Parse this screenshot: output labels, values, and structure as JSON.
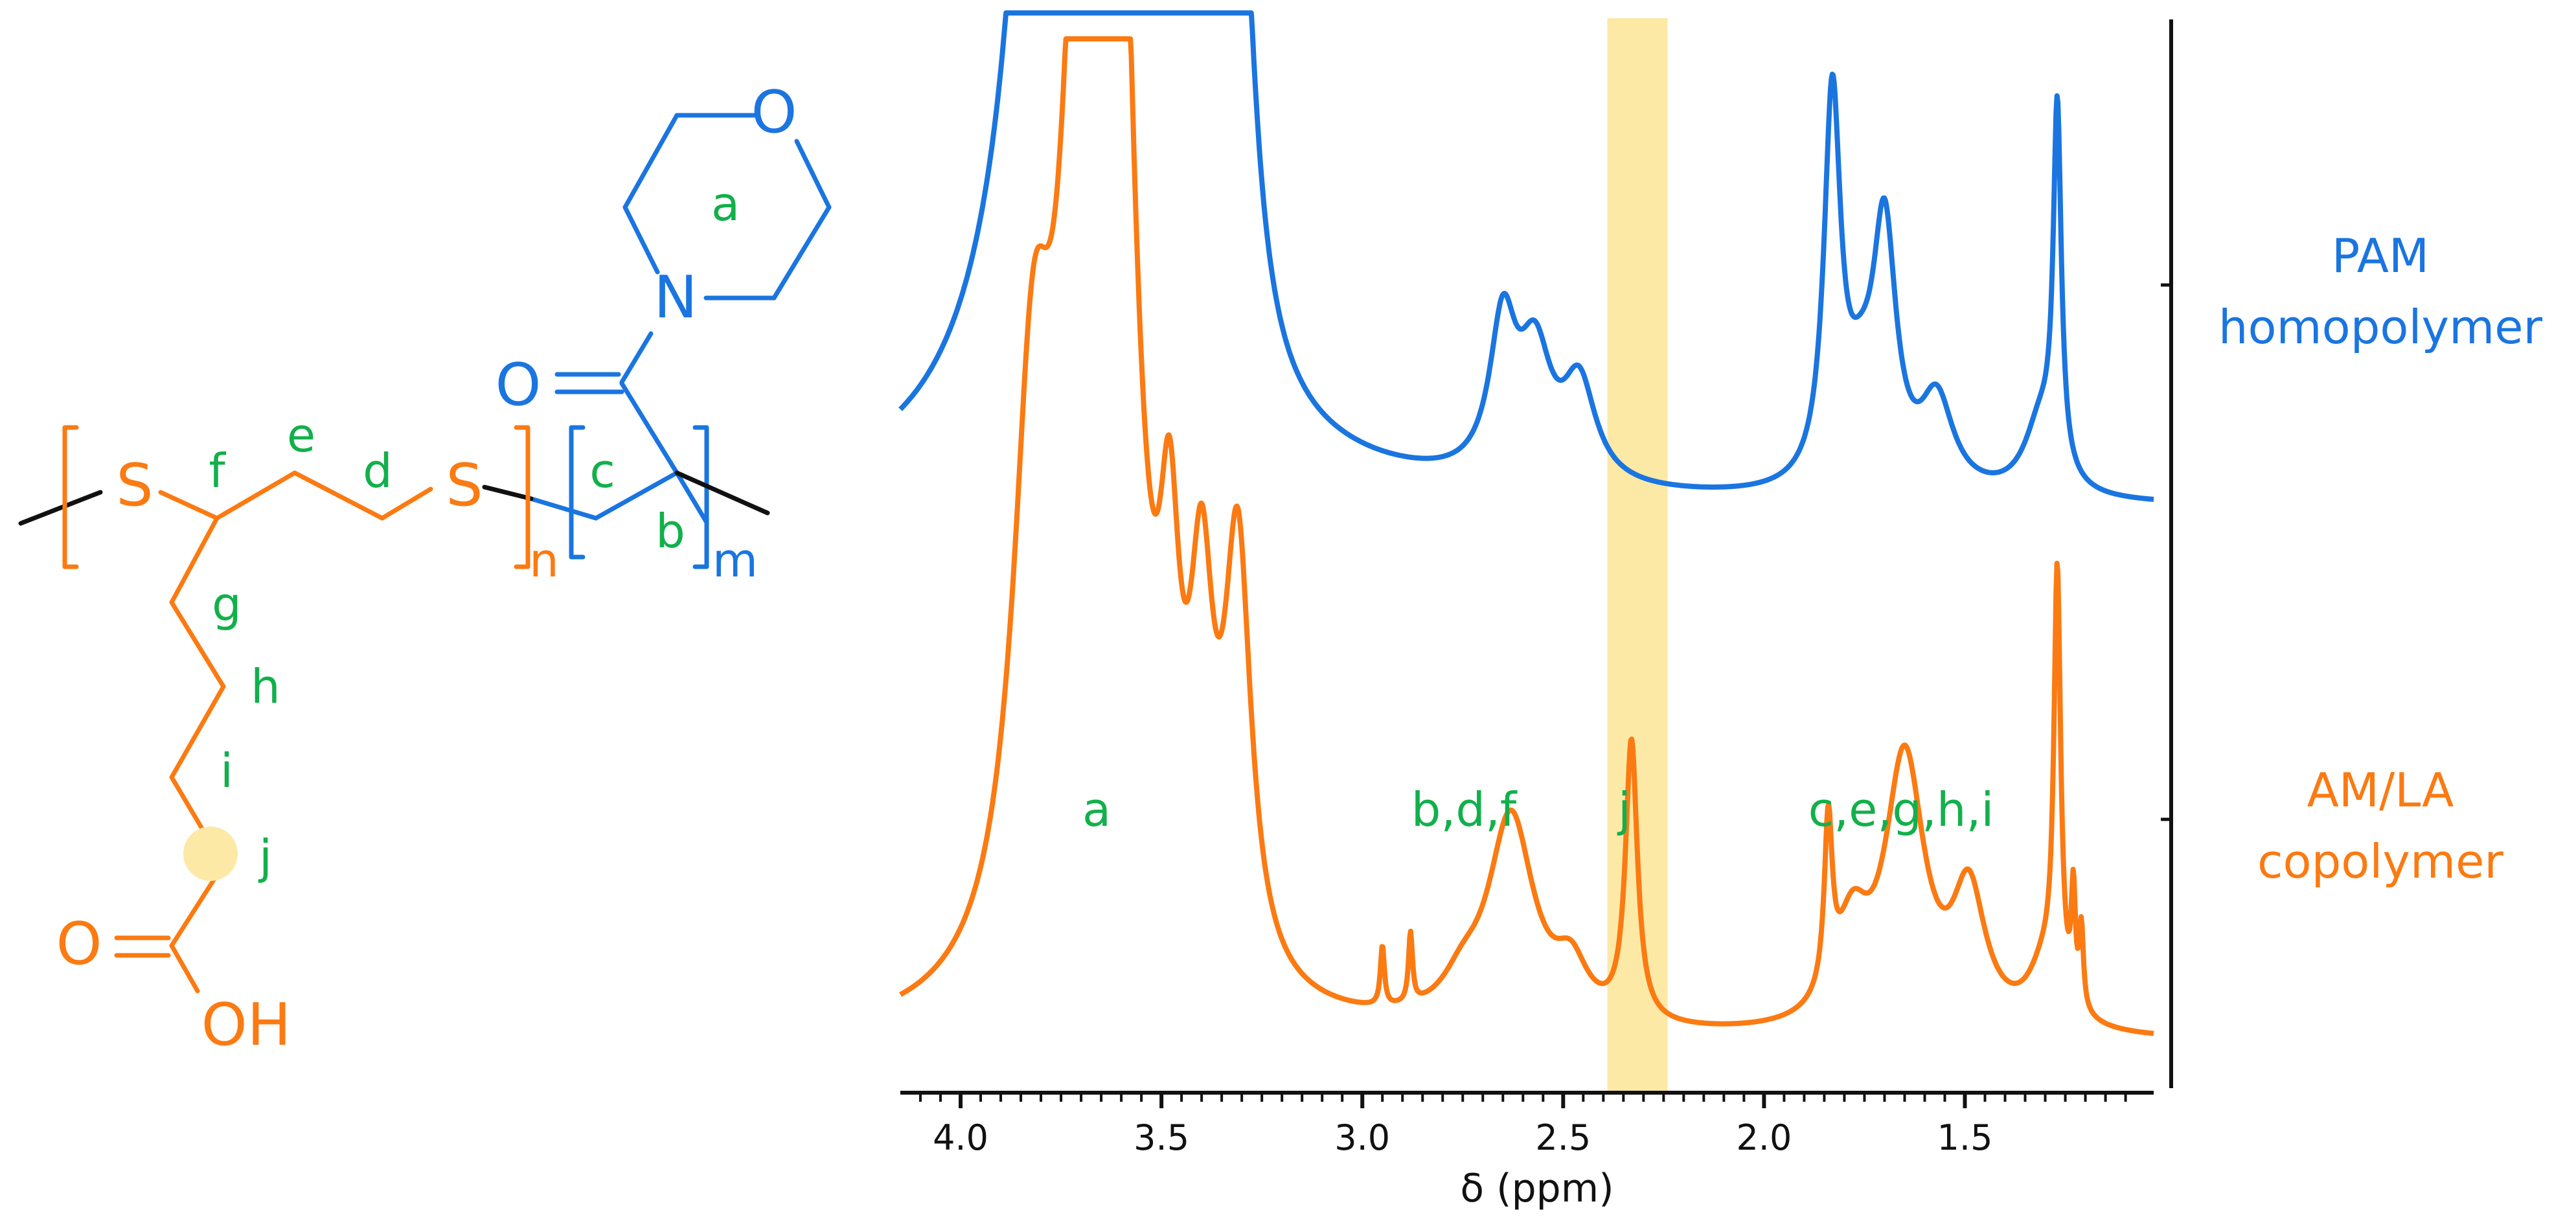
{
  "colors": {
    "blue": "#1a75e0",
    "orange": "#fb7a12",
    "green": "#12b04b",
    "black": "#111111",
    "highlight": "#fde9a6"
  },
  "structure": {
    "atoms": {
      "o_ring": "O",
      "n": "N",
      "o_carbonyl": "O",
      "s1": "S",
      "s2": "S",
      "o_acid": "O",
      "oh": "OH"
    },
    "subscripts": {
      "n": "n",
      "m": "m"
    },
    "labels": {
      "a": "a",
      "b": "b",
      "c": "c",
      "d": "d",
      "e": "e",
      "f": "f",
      "g": "g",
      "h": "h",
      "i": "i",
      "j": "j"
    }
  },
  "spectrum_labels": {
    "pam": [
      "PAM",
      "homopolymer"
    ],
    "amla": [
      "AM/LA",
      "copolymer"
    ]
  },
  "peak_labels": {
    "a": "a",
    "bdf": "b,d,f",
    "j": "j",
    "cegh": "c,e,g,h,i"
  },
  "chart_data": {
    "type": "line",
    "xlabel": "δ (ppm)",
    "xlim": [
      4.15,
      1.03
    ],
    "x_reversed": true,
    "ticks": [
      "4.0",
      "3.5",
      "3.0",
      "2.5",
      "2.0",
      "1.5"
    ],
    "highlight_range": [
      2.39,
      2.24
    ],
    "series": [
      {
        "name": "PAM homopolymer",
        "color": "#1a75e0",
        "baseline": 0.0,
        "peaks": [
          {
            "shift": 3.67,
            "height": 5.0,
            "width": 0.075
          },
          {
            "shift": 3.8,
            "height": 0.5,
            "width": 0.05
          },
          {
            "shift": 3.49,
            "height": 0.25,
            "width": 0.03
          },
          {
            "shift": 3.41,
            "height": 0.32,
            "width": 0.035
          },
          {
            "shift": 3.31,
            "height": 0.72,
            "width": 0.045
          },
          {
            "shift": 2.65,
            "height": 0.2,
            "width": 0.04
          },
          {
            "shift": 2.57,
            "height": 0.16,
            "width": 0.05
          },
          {
            "shift": 2.46,
            "height": 0.13,
            "width": 0.05
          },
          {
            "shift": 1.83,
            "height": 0.51,
            "width": 0.025
          },
          {
            "shift": 1.76,
            "height": 0.1,
            "width": 0.05
          },
          {
            "shift": 1.7,
            "height": 0.33,
            "width": 0.035
          },
          {
            "shift": 1.57,
            "height": 0.12,
            "width": 0.05
          },
          {
            "shift": 1.31,
            "height": 0.1,
            "width": 0.05
          },
          {
            "shift": 1.27,
            "height": 0.48,
            "width": 0.012
          }
        ]
      },
      {
        "name": "AM/LA copolymer",
        "color": "#fb7a12",
        "baseline": 0.0,
        "peaks": [
          {
            "shift": 3.69,
            "height": 1.08,
            "width": 0.065
          },
          {
            "shift": 3.61,
            "height": 0.97,
            "width": 0.05
          },
          {
            "shift": 3.82,
            "height": 0.5,
            "width": 0.06
          },
          {
            "shift": 3.48,
            "height": 0.3,
            "width": 0.03
          },
          {
            "shift": 3.4,
            "height": 0.32,
            "width": 0.035
          },
          {
            "shift": 3.31,
            "height": 0.42,
            "width": 0.04
          },
          {
            "shift": 2.95,
            "height": 0.06,
            "width": 0.006
          },
          {
            "shift": 2.88,
            "height": 0.07,
            "width": 0.006
          },
          {
            "shift": 2.63,
            "height": 0.21,
            "width": 0.07
          },
          {
            "shift": 2.75,
            "height": 0.03,
            "width": 0.06
          },
          {
            "shift": 2.48,
            "height": 0.05,
            "width": 0.05
          },
          {
            "shift": 2.33,
            "height": 0.28,
            "width": 0.018
          },
          {
            "shift": 1.84,
            "height": 0.17,
            "width": 0.012
          },
          {
            "shift": 1.78,
            "height": 0.09,
            "width": 0.05
          },
          {
            "shift": 1.65,
            "height": 0.27,
            "width": 0.06
          },
          {
            "shift": 1.49,
            "height": 0.13,
            "width": 0.05
          },
          {
            "shift": 1.27,
            "height": 0.42,
            "width": 0.01
          },
          {
            "shift": 1.3,
            "height": 0.06,
            "width": 0.05
          },
          {
            "shift": 1.23,
            "height": 0.11,
            "width": 0.006
          },
          {
            "shift": 1.21,
            "height": 0.08,
            "width": 0.006
          }
        ]
      }
    ]
  }
}
